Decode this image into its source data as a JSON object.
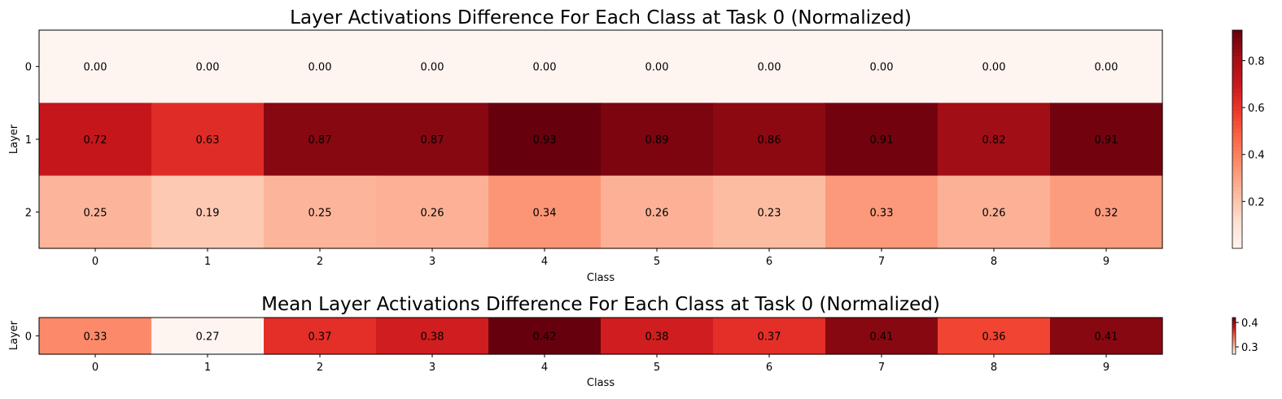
{
  "chart_data": [
    {
      "type": "heatmap",
      "title": "Layer Activations Difference For Each Class at Task 0 (Normalized)",
      "xlabel": "Class",
      "ylabel": "Layer",
      "x_categories": [
        "0",
        "1",
        "2",
        "3",
        "4",
        "5",
        "6",
        "7",
        "8",
        "9"
      ],
      "y_categories": [
        "0",
        "1",
        "2"
      ],
      "values": [
        [
          0.0,
          0.0,
          0.0,
          0.0,
          0.0,
          0.0,
          0.0,
          0.0,
          0.0,
          0.0
        ],
        [
          0.72,
          0.63,
          0.87,
          0.87,
          0.93,
          0.89,
          0.86,
          0.91,
          0.82,
          0.91
        ],
        [
          0.25,
          0.19,
          0.25,
          0.26,
          0.34,
          0.26,
          0.23,
          0.33,
          0.26,
          0.32
        ]
      ],
      "value_labels": [
        [
          "0.00",
          "0.00",
          "0.00",
          "0.00",
          "0.00",
          "0.00",
          "0.00",
          "0.00",
          "0.00",
          "0.00"
        ],
        [
          "0.72",
          "0.63",
          "0.87",
          "0.87",
          "0.93",
          "0.89",
          "0.86",
          "0.91",
          "0.82",
          "0.91"
        ],
        [
          "0.25",
          "0.19",
          "0.25",
          "0.26",
          "0.34",
          "0.26",
          "0.23",
          "0.33",
          "0.26",
          "0.32"
        ]
      ],
      "colormap": "Reds",
      "vmin": 0.0,
      "vmax": 0.93,
      "colorbar_ticks": [
        0.2,
        0.4,
        0.6,
        0.8
      ],
      "colorbar_tick_labels": [
        "0.2",
        "0.4",
        "0.6",
        "0.8"
      ]
    },
    {
      "type": "heatmap",
      "title": "Mean Layer Activations Difference For Each Class at Task 0 (Normalized)",
      "xlabel": "Class",
      "ylabel": "Layer",
      "x_categories": [
        "0",
        "1",
        "2",
        "3",
        "4",
        "5",
        "6",
        "7",
        "8",
        "9"
      ],
      "y_categories": [
        "0"
      ],
      "values": [
        [
          0.33,
          0.27,
          0.37,
          0.38,
          0.42,
          0.38,
          0.37,
          0.41,
          0.36,
          0.41
        ]
      ],
      "value_labels": [
        [
          "0.33",
          "0.27",
          "0.37",
          "0.38",
          "0.42",
          "0.38",
          "0.37",
          "0.41",
          "0.36",
          "0.41"
        ]
      ],
      "colormap": "Reds",
      "vmin": 0.27,
      "vmax": 0.42,
      "colorbar_ticks": [
        0.3,
        0.4
      ],
      "colorbar_tick_labels": [
        "0.3",
        "0.4"
      ]
    }
  ],
  "colors": {
    "reds_stops": [
      "#fff5f0",
      "#fee0d2",
      "#fcbba1",
      "#fc9272",
      "#fb6a4a",
      "#ef3b2c",
      "#cb181d",
      "#a50f15",
      "#67000d"
    ],
    "text": "#000000",
    "axis": "#000000"
  }
}
